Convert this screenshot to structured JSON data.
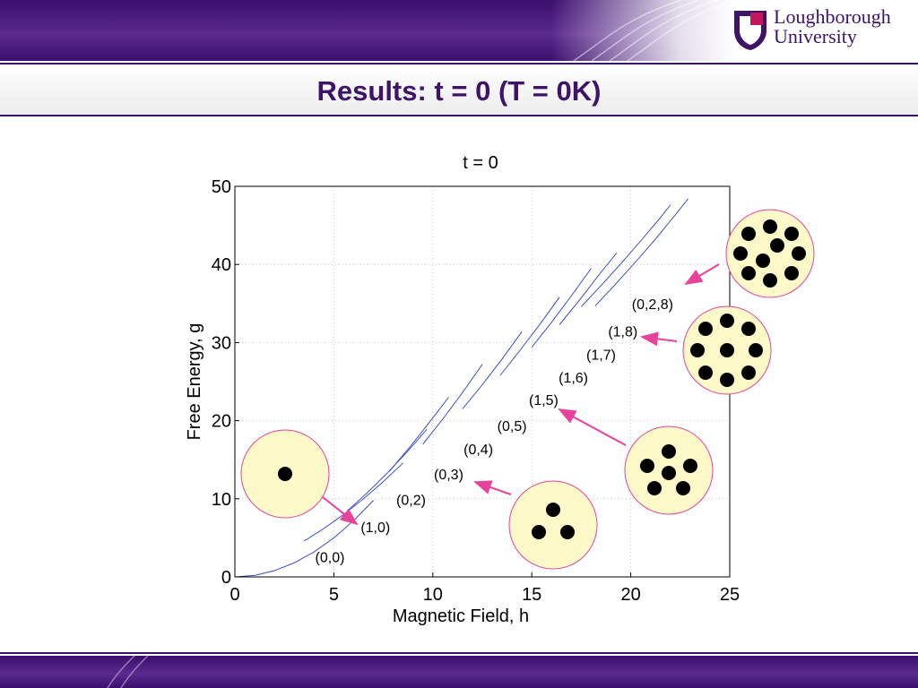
{
  "slide": {
    "title": "Results: t = 0 (T = 0K)",
    "logo_line1": "Loughborough",
    "logo_line2": "University"
  },
  "colors": {
    "brand_purple": "#3b0f6e",
    "brand_magenta": "#c2185b",
    "curve_blue": "#2a3fc9",
    "arrow_pink": "#e8429a",
    "disc_fill": "#fdf9c8",
    "disc_border": "#e8429a"
  },
  "chart_data": {
    "type": "line",
    "title": "t = 0",
    "xlabel": "Magnetic Field, h",
    "ylabel": "Free Energy, g",
    "xlim": [
      0,
      25
    ],
    "ylim": [
      0,
      50
    ],
    "xticks": [
      0,
      5,
      10,
      15,
      20,
      25
    ],
    "yticks": [
      0,
      10,
      20,
      30,
      40,
      50
    ],
    "grid": true,
    "series": [
      {
        "name": "(0,0)",
        "x": [
          0,
          1,
          2,
          3,
          4,
          5,
          6,
          7
        ],
        "y": [
          0,
          0.2,
          0.8,
          1.8,
          3.2,
          5.0,
          7.2,
          9.8
        ]
      },
      {
        "name": "(1,0)",
        "x": [
          3.5,
          4.5,
          5.5,
          6.5,
          7.5,
          8.5
        ],
        "y": [
          4.6,
          6.2,
          8.0,
          10.0,
          12.2,
          14.6
        ]
      },
      {
        "name": "(0,2)",
        "x": [
          5.7,
          6.7,
          7.7,
          8.7,
          9.7
        ],
        "y": [
          8.5,
          10.8,
          13.3,
          16.0,
          18.9
        ]
      },
      {
        "name": "(0,3)",
        "x": [
          7.8,
          8.8,
          9.8,
          10.8
        ],
        "y": [
          13.5,
          16.5,
          19.7,
          23.0
        ]
      },
      {
        "name": "(0,4)",
        "x": [
          9.5,
          10.5,
          11.5,
          12.5
        ],
        "y": [
          17.0,
          20.2,
          23.6,
          27.2
        ]
      },
      {
        "name": "(0,5)",
        "x": [
          11.5,
          12.5,
          13.5,
          14.5
        ],
        "y": [
          21.5,
          24.6,
          27.9,
          31.4
        ]
      },
      {
        "name": "(1,5)",
        "x": [
          13.4,
          14.4,
          15.4,
          16.4
        ],
        "y": [
          25.8,
          29.0,
          32.3,
          35.8
        ]
      },
      {
        "name": "(1,6)",
        "x": [
          15.0,
          16.0,
          17.0,
          18.0
        ],
        "y": [
          29.4,
          32.6,
          36.0,
          39.5
        ]
      },
      {
        "name": "(1,7)",
        "x": [
          16.4,
          17.4,
          18.4,
          19.3
        ],
        "y": [
          32.3,
          35.4,
          38.7,
          41.5
        ]
      },
      {
        "name": "(1,8)",
        "x": [
          17.5,
          18.5,
          19.5,
          20.5,
          21.5,
          22.0
        ],
        "y": [
          34.6,
          37.3,
          40.1,
          43.0,
          46.0,
          47.6
        ]
      },
      {
        "name": "(0,2,8)",
        "x": [
          18.2,
          19.2,
          20.2,
          21.2,
          22.2,
          22.9
        ],
        "y": [
          34.7,
          37.4,
          40.2,
          43.1,
          46.2,
          48.4
        ]
      }
    ],
    "annotations": [
      {
        "label": "(0,0)",
        "x": 4.8,
        "y": 2.6
      },
      {
        "label": "(1,0)",
        "x": 7.1,
        "y": 6.4
      },
      {
        "label": "(0,2)",
        "x": 8.9,
        "y": 9.9
      },
      {
        "label": "(0,3)",
        "x": 10.8,
        "y": 13.2
      },
      {
        "label": "(0,4)",
        "x": 12.3,
        "y": 16.4
      },
      {
        "label": "(0,5)",
        "x": 14.0,
        "y": 19.4
      },
      {
        "label": "(1,5)",
        "x": 15.6,
        "y": 22.7
      },
      {
        "label": "(1,6)",
        "x": 17.1,
        "y": 25.6
      },
      {
        "label": "(1,7)",
        "x": 18.5,
        "y": 28.5
      },
      {
        "label": "(1,8)",
        "x": 19.6,
        "y": 31.5
      },
      {
        "label": "(0,2,8)",
        "x": 21.1,
        "y": 35.0
      }
    ]
  }
}
